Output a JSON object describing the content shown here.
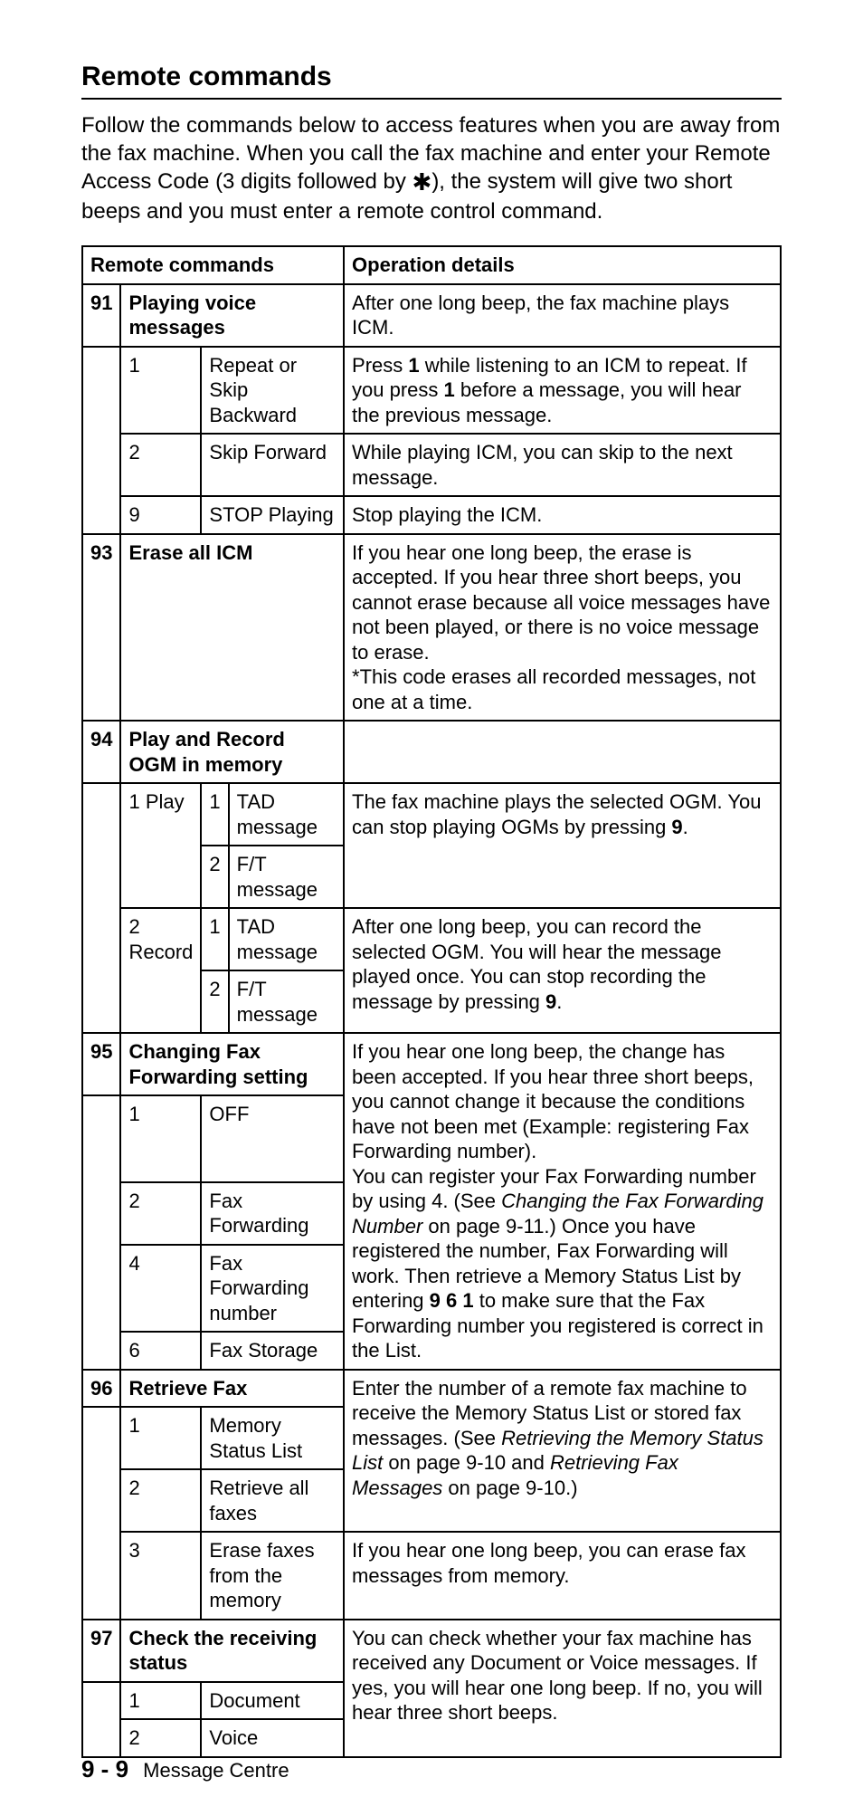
{
  "title": "Remote commands",
  "intro_pre": "Follow the commands below to access features when you are away from the fax machine. When you call the fax machine and enter your Remote Access Code (3 digits followed by ",
  "intro_star": "✱",
  "intro_post": "), the system will give two short beeps and you must enter a remote control command.",
  "hdr_left": "Remote commands",
  "hdr_right": "Operation details",
  "r91_code": "91",
  "r91_title": "Playing voice messages",
  "r91_detail": "After one long beep, the fax machine plays ICM.",
  "r91_1_n": "1",
  "r91_1_label": "Repeat or Skip Backward",
  "r91_1_detail_a": "Press ",
  "r91_1_detail_b": "1",
  "r91_1_detail_c": " while listening to an ICM to repeat. If you press ",
  "r91_1_detail_d": "1",
  "r91_1_detail_e": " before a message, you will hear the previous message.",
  "r91_2_n": "2",
  "r91_2_label": "Skip Forward",
  "r91_2_detail": "While playing ICM, you can skip to the next message.",
  "r91_9_n": "9",
  "r91_9_label": "STOP Playing",
  "r91_9_detail": "Stop playing the ICM.",
  "r93_code": "93",
  "r93_title": "Erase all ICM",
  "r93_detail_a": "If you hear one long beep, the erase is accepted. If you hear three short beeps, you cannot erase because all voice messages have not been played, or there is no voice message to erase.",
  "r93_detail_b": "*This code erases all recorded messages, not one at a time.",
  "r94_code": "94",
  "r94_title": "Play and Record OGM in memory",
  "r94_play_n": "1",
  "r94_play_label": "Play",
  "r94_play_1n": "1",
  "r94_play_1l": "TAD message",
  "r94_play_2n": "2",
  "r94_play_2l": "F/T message",
  "r94_play_detail_a": "The fax machine plays the selected OGM. You can stop playing OGMs by pressing ",
  "r94_play_detail_b": "9",
  "r94_play_detail_c": ".",
  "r94_rec_n": "2",
  "r94_rec_label": "Record",
  "r94_rec_1n": "1",
  "r94_rec_1l": "TAD message",
  "r94_rec_2n": "2",
  "r94_rec_2l": "F/T message",
  "r94_rec_detail_a": "After one long beep, you can record the selected OGM. You will hear the message played once. You can stop recording the message by pressing ",
  "r94_rec_detail_b": "9",
  "r94_rec_detail_c": ".",
  "r95_code": "95",
  "r95_title": "Changing Fax Forwarding setting",
  "r95_1_n": "1",
  "r95_1_l": "OFF",
  "r95_2_n": "2",
  "r95_2_l": "Fax Forwarding",
  "r95_4_n": "4",
  "r95_4_l": "Fax Forwarding number",
  "r95_6_n": "6",
  "r95_6_l": "Fax Storage",
  "r95_detail_a": "If you hear one long beep, the change has been accepted. If you hear three short beeps, you cannot change it because the conditions have not been met (Example: registering Fax Forwarding number).",
  "r95_detail_b": "You can register your Fax Forwarding number by using 4. (See ",
  "r95_detail_c": "Changing the Fax Forwarding Number",
  "r95_detail_d": " on page 9-11.) Once you have registered the number, Fax Forwarding will work. Then retrieve a Memory Status List by entering ",
  "r95_detail_e": "9 6 1",
  "r95_detail_f": " to make sure that the Fax Forwarding number you registered is correct in the List.",
  "r96_code": "96",
  "r96_title": "Retrieve Fax",
  "r96_1_n": "1",
  "r96_1_l": "Memory Status List",
  "r96_2_n": "2",
  "r96_2_l": "Retrieve all faxes",
  "r96_3_n": "3",
  "r96_3_l": "Erase faxes from the memory",
  "r96_detail_a": "Enter the number of a remote fax machine to receive the Memory Status List or stored fax messages. (See ",
  "r96_detail_b": "Retrieving the Memory Status List",
  "r96_detail_c": " on page 9-10 and ",
  "r96_detail_d": "Retrieving Fax Messages",
  "r96_detail_e": " on page 9-10.)",
  "r96_3_detail": "If you hear one long beep, you can erase fax messages from memory.",
  "r97_code": "97",
  "r97_title": "Check the receiving status",
  "r97_1_n": "1",
  "r97_1_l": "Document",
  "r97_2_n": "2",
  "r97_2_l": "Voice",
  "r97_detail": "You can check whether your fax machine has received any Document or Voice messages. If yes, you will hear one long beep. If no, you will hear three short beeps.",
  "footer_page": "9 - 9",
  "footer_label": "Message Centre"
}
